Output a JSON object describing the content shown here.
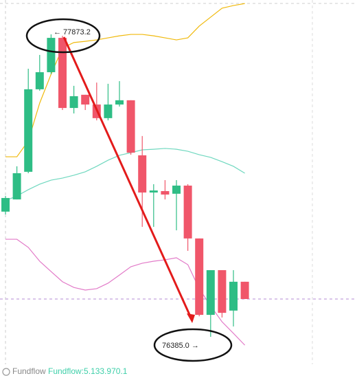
{
  "chart_data": {
    "type": "candlestick",
    "ylim": [
      76249.7,
      78042.3
    ],
    "candles": {
      "open": [
        77001,
        77061,
        77197,
        77603,
        77687,
        77856,
        77511,
        77576,
        77528,
        77461,
        77528,
        77549,
        77278,
        77095,
        77102,
        77089,
        77129,
        76869,
        76493,
        76713,
        76514,
        76656
      ],
      "high": [
        77078,
        77224,
        77704,
        77772,
        77873.2,
        77866,
        77620,
        77576,
        77636,
        77630,
        77643,
        77549,
        77373,
        77136,
        77156,
        77156,
        77136,
        76869,
        76713,
        76713,
        76713,
        76656
      ],
      "low": [
        76987,
        77061,
        77190,
        77596,
        77677,
        77501,
        77484,
        77501,
        77450,
        77450,
        77518,
        77281,
        76926,
        76926,
        77061,
        76909,
        76808,
        76486,
        76385.0,
        76480,
        76436,
        76571
      ],
      "close": [
        77068,
        77190,
        77603,
        77687,
        77856,
        77511,
        77569,
        77528,
        77461,
        77528,
        77549,
        77291,
        77095,
        77105,
        77085,
        77129,
        76869,
        76493,
        76713,
        76503,
        76656,
        76571
      ],
      "up_color": "#2ebd85",
      "down_color": "#f0566a"
    },
    "series": [
      {
        "color": "#f0b90b",
        "values": [
          77271,
          77271,
          77349,
          77535,
          77677,
          77806,
          77833,
          77839,
          77846,
          77856,
          77866,
          77873,
          77873,
          77866,
          77856,
          77846,
          77856,
          77914,
          77958,
          78002,
          78015,
          78025
        ]
      },
      {
        "color": "#6fd8bf",
        "values": [
          77055,
          77078,
          77109,
          77136,
          77156,
          77166,
          77180,
          77197,
          77224,
          77254,
          77278,
          77291,
          77305,
          77308,
          77312,
          77308,
          77298,
          77281,
          77268,
          77247,
          77224,
          77190
        ]
      },
      {
        "color": "#e27ac8",
        "values": [
          76865,
          76865,
          76825,
          76757,
          76706,
          76656,
          76628,
          76615,
          76622,
          76649,
          76689,
          76730,
          76747,
          76757,
          76764,
          76774,
          76740,
          76622,
          76537,
          76459,
          76402,
          76344
        ]
      }
    ],
    "annotations": [
      "← 77873.2",
      "76385.0 →"
    ],
    "footer": {
      "label": "Fundflow",
      "value": "Fundflow:5.133.970.1"
    }
  }
}
